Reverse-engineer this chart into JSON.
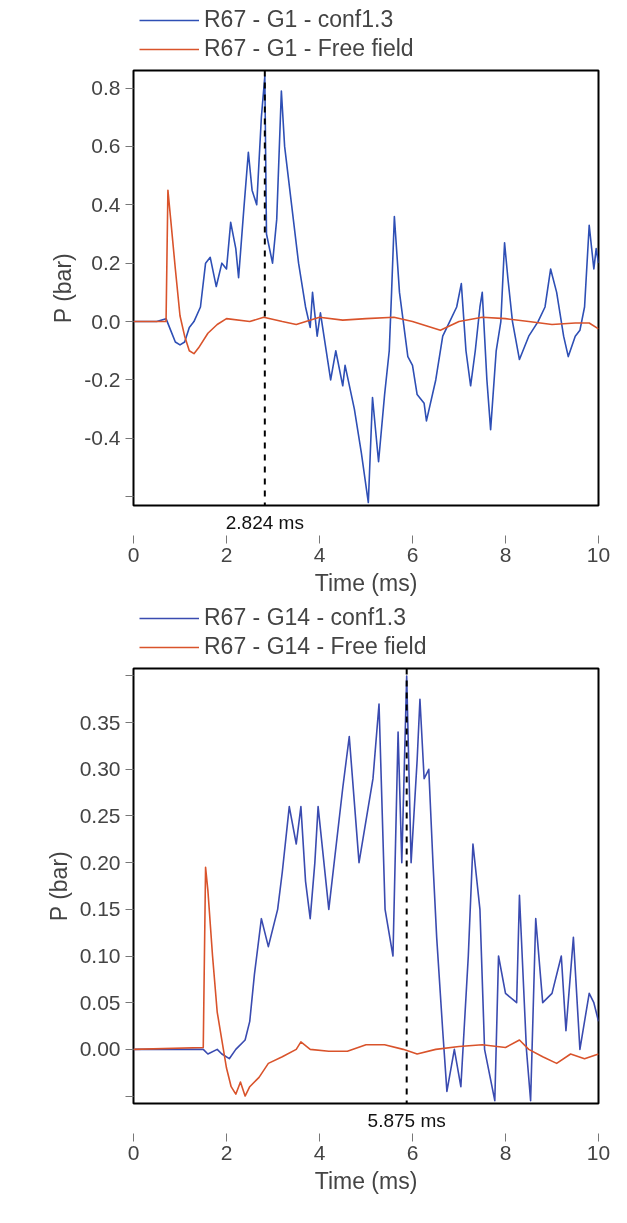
{
  "chart_data": [
    {
      "type": "line",
      "xlabel": "Time (ms)",
      "ylabel": "P (bar)",
      "legend": "top left",
      "grid": false,
      "line_style": "solid",
      "marker": "none",
      "xlim": [
        0,
        10
      ],
      "xticks": [
        0,
        2,
        4,
        6,
        8,
        10
      ],
      "ylim": [
        -0.63,
        0.86
      ],
      "yticks": [
        {
          "value": -0.6,
          "label": null
        },
        -0.4,
        -0.2,
        {
          "value": 0,
          "label": "0.0"
        },
        0.2,
        0.4,
        0.6,
        0.8
      ],
      "ref_lines": [
        {
          "axis": "x",
          "value": 2.824,
          "label": "2.824 ms",
          "color": "#000000",
          "line_style": "dashed"
        }
      ],
      "series": [
        {
          "name": "R67 - G1 - conf1.3",
          "color": "#2e4fb5",
          "x": [
            0,
            0.5,
            0.7,
            0.8,
            0.9,
            1.0,
            1.1,
            1.2,
            1.3,
            1.44,
            1.55,
            1.65,
            1.78,
            1.9,
            2.0,
            2.09,
            2.2,
            2.26,
            2.37,
            2.47,
            2.55,
            2.65,
            2.75,
            2.824,
            2.86,
            2.99,
            3.08,
            3.18,
            3.25,
            3.4,
            3.55,
            3.7,
            3.8,
            3.85,
            3.95,
            4.02,
            4.24,
            4.35,
            4.5,
            4.55,
            4.75,
            4.9,
            5.05,
            5.14,
            5.27,
            5.4,
            5.5,
            5.55,
            5.61,
            5.72,
            5.9,
            6.0,
            6.1,
            6.25,
            6.3,
            6.5,
            6.65,
            6.8,
            6.95,
            7.05,
            7.15,
            7.25,
            7.35,
            7.45,
            7.5,
            7.6,
            7.68,
            7.8,
            7.9,
            7.98,
            8.05,
            8.15,
            8.3,
            8.5,
            8.7,
            8.85,
            8.97,
            9.1,
            9.25,
            9.35,
            9.5,
            9.6,
            9.7,
            9.8,
            9.9,
            9.95,
            10
          ],
          "values": [
            0,
            0,
            0.01,
            -0.03,
            -0.07,
            -0.08,
            -0.07,
            -0.02,
            0.0,
            0.05,
            0.2,
            0.22,
            0.12,
            0.2,
            0.18,
            0.34,
            0.25,
            0.15,
            0.38,
            0.58,
            0.45,
            0.4,
            0.7,
            0.84,
            0.3,
            0.2,
            0.35,
            0.79,
            0.6,
            0.4,
            0.2,
            0.05,
            -0.02,
            0.1,
            -0.05,
            0.03,
            -0.2,
            -0.1,
            -0.22,
            -0.15,
            -0.3,
            -0.45,
            -0.62,
            -0.26,
            -0.48,
            -0.25,
            -0.1,
            0.1,
            0.36,
            0.1,
            -0.12,
            -0.15,
            -0.25,
            -0.28,
            -0.34,
            -0.2,
            -0.05,
            0.0,
            0.05,
            0.13,
            -0.1,
            -0.22,
            -0.1,
            0.05,
            0.1,
            -0.2,
            -0.37,
            -0.1,
            0.0,
            0.27,
            0.15,
            0.0,
            -0.13,
            -0.05,
            0.0,
            0.05,
            0.18,
            0.1,
            -0.05,
            -0.12,
            -0.05,
            -0.03,
            0.05,
            0.33,
            0.18,
            0.25,
            0.2
          ]
        },
        {
          "name": "R67 - G1 - Free field",
          "color": "#d9532b",
          "x": [
            0,
            0.7,
            0.74,
            0.8,
            0.9,
            1.0,
            1.1,
            1.2,
            1.3,
            1.4,
            1.6,
            1.8,
            2.0,
            2.5,
            2.8,
            3.2,
            3.5,
            4.0,
            4.5,
            5.0,
            5.6,
            6.0,
            6.6,
            7.0,
            7.5,
            8.0,
            8.5,
            9.0,
            9.5,
            9.8,
            10
          ],
          "values": [
            0,
            0,
            0.45,
            0.35,
            0.18,
            0.02,
            -0.05,
            -0.1,
            -0.11,
            -0.09,
            -0.04,
            -0.01,
            0.01,
            0.0,
            0.015,
            0.0,
            -0.01,
            0.015,
            0.005,
            0.01,
            0.015,
            0.0,
            -0.03,
            0.0,
            0.015,
            0.01,
            0.0,
            -0.01,
            -0.005,
            -0.005,
            -0.025
          ]
        }
      ]
    },
    {
      "type": "line",
      "xlabel": "Time (ms)",
      "ylabel": "P (bar)",
      "legend": "top left",
      "grid": false,
      "line_style": "solid",
      "marker": "none",
      "xlim": [
        0,
        10
      ],
      "xticks": [
        0,
        2,
        4,
        6,
        8,
        10
      ],
      "ylim": [
        -0.058,
        0.408
      ],
      "yticks": [
        {
          "value": -0.05,
          "label": null
        },
        {
          "value": 0,
          "label": "0.00"
        },
        0.05,
        {
          "value": 0.1,
          "label": "0.10"
        },
        0.15,
        {
          "value": 0.2,
          "label": "0.20"
        },
        0.25,
        {
          "value": 0.3,
          "label": "0.30"
        },
        0.35,
        {
          "value": 0.4,
          "label": null
        }
      ],
      "ref_lines": [
        {
          "axis": "x",
          "value": 5.875,
          "label": "5.875 ms",
          "color": "#000000",
          "line_style": "dashed"
        }
      ],
      "series": [
        {
          "name": "R67 - G14 - conf1.3",
          "color": "#3a4bb0",
          "x": [
            0,
            1.5,
            1.6,
            1.8,
            1.9,
            2.06,
            2.2,
            2.4,
            2.5,
            2.6,
            2.75,
            2.9,
            3.1,
            3.2,
            3.35,
            3.5,
            3.6,
            3.7,
            3.8,
            3.9,
            3.97,
            4.2,
            4.5,
            4.64,
            4.85,
            5.15,
            5.28,
            5.41,
            5.58,
            5.69,
            5.77,
            5.875,
            5.97,
            6.1,
            6.16,
            6.25,
            6.35,
            6.44,
            6.52,
            6.65,
            6.74,
            6.9,
            7.04,
            7.2,
            7.3,
            7.45,
            7.55,
            7.77,
            7.85,
            8.0,
            8.24,
            8.3,
            8.45,
            8.54,
            8.65,
            8.8,
            9.0,
            9.2,
            9.3,
            9.46,
            9.6,
            9.8,
            9.9,
            10
          ],
          "values": [
            0,
            0,
            -0.005,
            0,
            -0.005,
            -0.01,
            0,
            0.01,
            0.03,
            0.08,
            0.14,
            0.11,
            0.15,
            0.19,
            0.26,
            0.22,
            0.26,
            0.18,
            0.14,
            0.2,
            0.26,
            0.15,
            0.28,
            0.335,
            0.2,
            0.29,
            0.37,
            0.15,
            0.1,
            0.34,
            0.2,
            0.4,
            0.2,
            0.31,
            0.375,
            0.29,
            0.3,
            0.2,
            0.12,
            0.02,
            -0.045,
            0.0,
            -0.04,
            0.1,
            0.22,
            0.15,
            0.0,
            -0.055,
            0.1,
            0.06,
            0.05,
            0.165,
            0.0,
            -0.055,
            0.14,
            0.05,
            0.06,
            0.1,
            0.02,
            0.12,
            0.0,
            0.06,
            0.05,
            0.03
          ]
        },
        {
          "name": "R67 - G14 - Free field",
          "color": "#d9532b",
          "x": [
            0,
            1.5,
            1.55,
            1.6,
            1.7,
            1.8,
            1.9,
            2.0,
            2.1,
            2.2,
            2.3,
            2.4,
            2.5,
            2.7,
            2.9,
            3.2,
            3.5,
            3.6,
            3.8,
            4.2,
            4.6,
            5.0,
            5.4,
            5.8,
            6.1,
            6.5,
            7.0,
            7.5,
            8.0,
            8.3,
            8.5,
            8.8,
            9.1,
            9.4,
            9.7,
            10
          ],
          "values": [
            0,
            0.002,
            0.195,
            0.17,
            0.1,
            0.04,
            0.01,
            -0.02,
            -0.04,
            -0.048,
            -0.035,
            -0.05,
            -0.04,
            -0.03,
            -0.015,
            -0.008,
            0.0,
            0.008,
            0.0,
            -0.002,
            -0.002,
            0.005,
            0.005,
            0.0,
            -0.005,
            0.0,
            0.003,
            0.005,
            0.002,
            0.01,
            0.0,
            -0.008,
            -0.015,
            -0.005,
            -0.01,
            -0.005
          ]
        }
      ]
    }
  ]
}
